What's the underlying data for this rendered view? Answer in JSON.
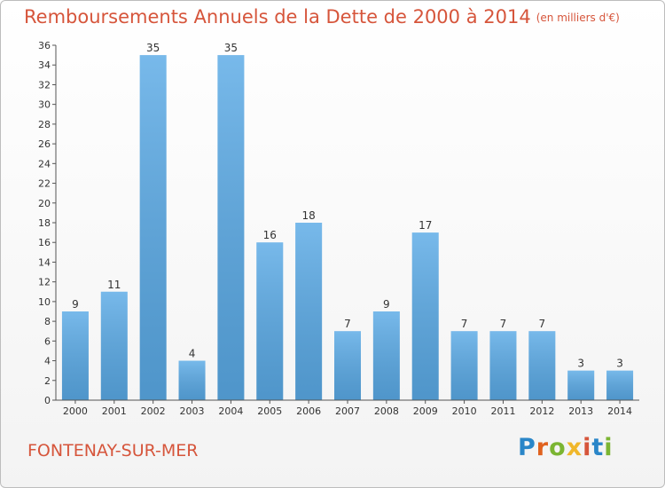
{
  "chart_data": {
    "type": "bar",
    "title": "Remboursements Annuels de la Dette de 2000 à 2014",
    "subtitle": "(en milliers d'€)",
    "xlabel": "",
    "ylabel": "",
    "categories": [
      "2000",
      "2001",
      "2002",
      "2003",
      "2004",
      "2005",
      "2006",
      "2007",
      "2008",
      "2009",
      "2010",
      "2011",
      "2012",
      "2013",
      "2014"
    ],
    "values": [
      9,
      11,
      35,
      4,
      35,
      16,
      18,
      7,
      9,
      17,
      7,
      7,
      7,
      3,
      3
    ],
    "ylim": [
      0,
      36
    ],
    "yticks": [
      0,
      2,
      4,
      6,
      8,
      10,
      12,
      14,
      16,
      18,
      20,
      22,
      24,
      26,
      28,
      30,
      32,
      34,
      36
    ],
    "grid": false,
    "legend": "none",
    "bar_color": "#3a93d6",
    "bar_color_dark": "#2a78bd"
  },
  "footer": {
    "town": "FONTENAY-SUR-MER",
    "logo": [
      "P",
      "r",
      "o",
      "x",
      "i",
      "t",
      "i"
    ]
  },
  "colors": {
    "title": "#d6553b",
    "axis": "#555555"
  }
}
